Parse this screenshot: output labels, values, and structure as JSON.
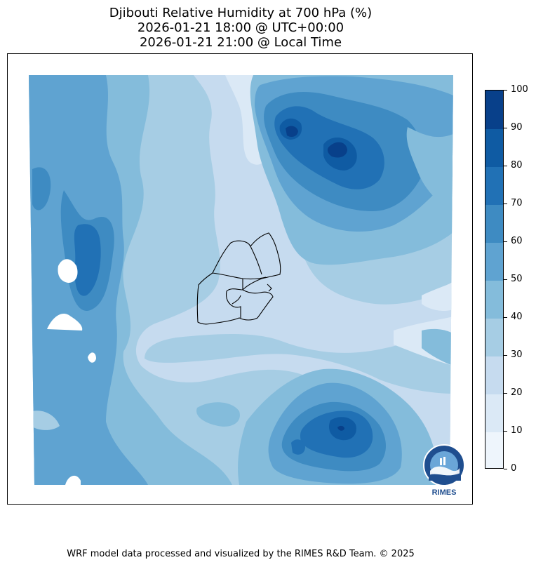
{
  "title": {
    "line1": "Djibouti Relative Humidity at 700 hPa (%)",
    "line2": "2026-01-21 18:00 @ UTC+00:00",
    "line3": "2026-01-21 21:00 @ Local Time"
  },
  "colorbar": {
    "levels": [
      0,
      10,
      20,
      30,
      40,
      50,
      60,
      70,
      80,
      90,
      100
    ],
    "tick_labels": [
      "0",
      "10",
      "20",
      "30",
      "40",
      "50",
      "60",
      "70",
      "80",
      "90",
      "100"
    ],
    "colors": [
      "#eef5fc",
      "#dbe9f6",
      "#c6dbef",
      "#a6cde4",
      "#84bcdb",
      "#5fa3d1",
      "#3e8bc2",
      "#2171b5",
      "#0f5ba3",
      "#08408a"
    ]
  },
  "logo": {
    "text": "RIMES"
  },
  "footer": "WRF model data processed and visualized by the RIMES R&D Team. © 2025"
}
